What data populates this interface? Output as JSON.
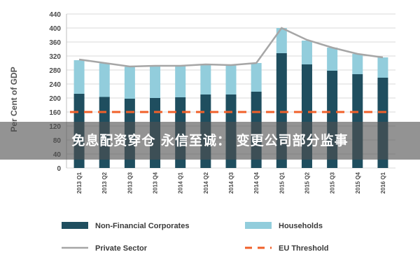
{
  "chart_data": {
    "type": "bar",
    "stacked": true,
    "ylabel": "Per Cent of GDP",
    "ylim": [
      0,
      440
    ],
    "yticks": [
      0,
      40,
      80,
      120,
      160,
      200,
      240,
      280,
      320,
      360,
      400,
      440
    ],
    "grid": true,
    "legend_position": "bottom",
    "categories": [
      "2013 Q1",
      "2013 Q2",
      "2013 Q3",
      "2013 Q4",
      "2014 Q1",
      "2014 Q2",
      "2014 Q3",
      "2014 Q4",
      "2015 Q1",
      "2015 Q2",
      "2015 Q3",
      "2015 Q4",
      "2016 Q1"
    ],
    "series": [
      {
        "name": "Non-Financial Corporates",
        "kind": "bar",
        "color": "#1f4e5f",
        "values": [
          212,
          203,
          198,
          200,
          202,
          210,
          210,
          218,
          328,
          296,
          278,
          268,
          258
        ]
      },
      {
        "name": "Households",
        "kind": "bar",
        "color": "#92cddc",
        "values": [
          96,
          96,
          91,
          92,
          90,
          86,
          83,
          82,
          72,
          68,
          66,
          58,
          58
        ]
      },
      {
        "name": "Private Sector",
        "kind": "line",
        "color": "#a6a6a6",
        "values": [
          310,
          300,
          290,
          292,
          292,
          296,
          294,
          300,
          400,
          366,
          344,
          326,
          316
        ]
      },
      {
        "name": "EU Threshold",
        "kind": "dashed-line",
        "color": "#f0602a",
        "values": [
          160,
          160,
          160,
          160,
          160,
          160,
          160,
          160,
          160,
          160,
          160,
          160,
          160
        ]
      }
    ]
  },
  "overlay": {
    "text": "免息配资穿仓 永信至诚：  变更公司部分监事"
  }
}
